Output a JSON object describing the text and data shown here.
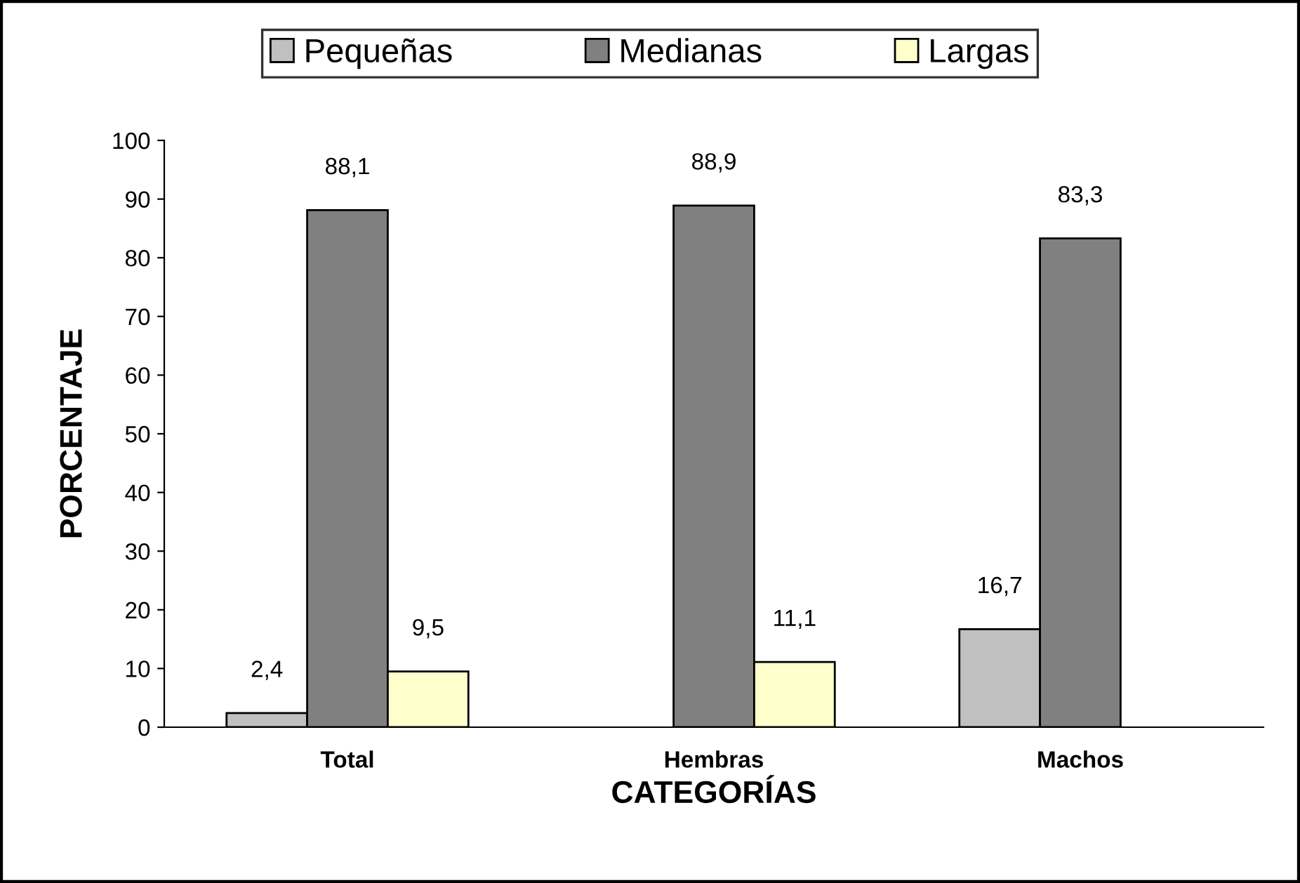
{
  "chart_data": {
    "type": "bar",
    "xlabel": "CATEGORÍAS",
    "ylabel": "PORCENTAJE",
    "categories": [
      "Total",
      "Hembras",
      "Machos"
    ],
    "series": [
      {
        "name": "Pequeñas",
        "color": "#c0c0c0",
        "values": [
          2.4,
          null,
          16.7
        ],
        "value_labels": [
          "2,4",
          null,
          "16,7"
        ]
      },
      {
        "name": "Medianas",
        "color": "#808080",
        "values": [
          88.1,
          88.9,
          83.3
        ],
        "value_labels": [
          "88,1",
          "88,9",
          "83,3"
        ]
      },
      {
        "name": "Largas",
        "color": "#ffffcc",
        "values": [
          9.5,
          11.1,
          null
        ],
        "value_labels": [
          "9,5",
          "11,1",
          null
        ]
      }
    ],
    "ylim": [
      0,
      100
    ],
    "yticks": [
      0,
      10,
      20,
      30,
      40,
      50,
      60,
      70,
      80,
      90,
      100
    ],
    "grid": false,
    "legend": "top"
  }
}
